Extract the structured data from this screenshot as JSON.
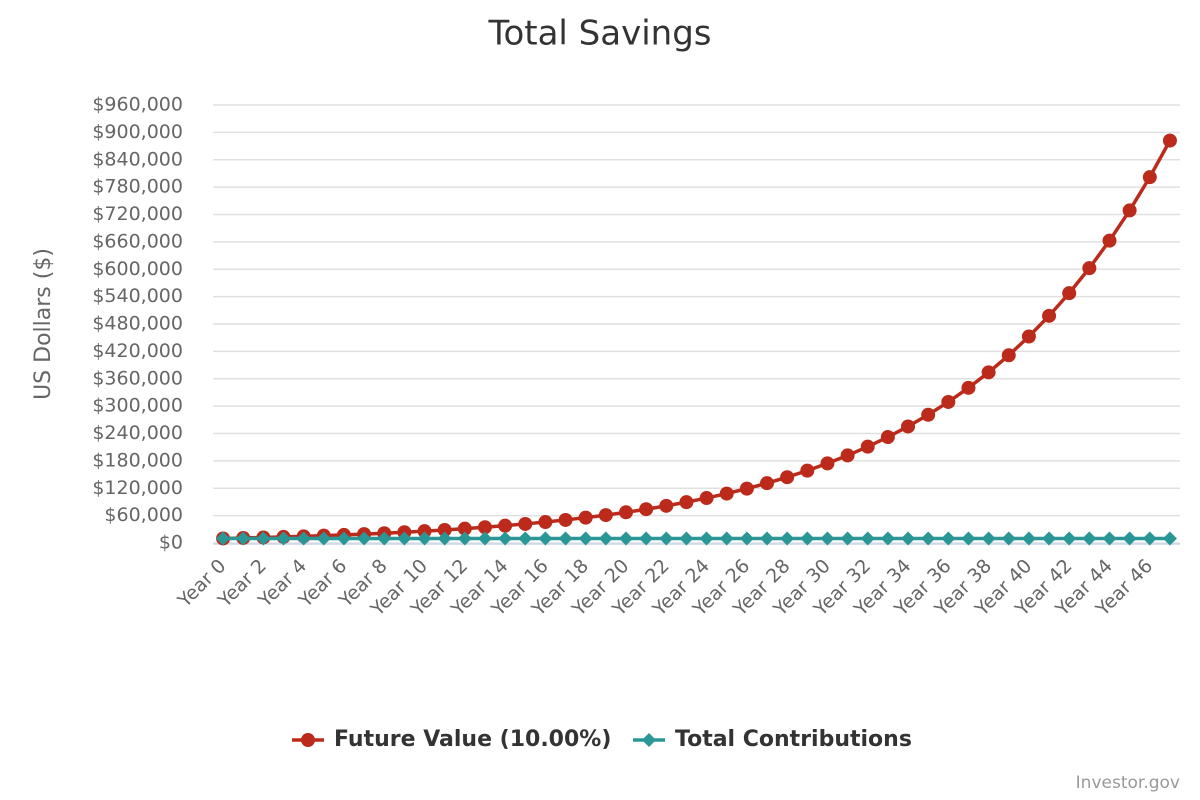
{
  "chart_data": {
    "type": "line",
    "title": "Total Savings",
    "y_label": "US Dollars ($)",
    "credit": "Investor.gov",
    "categories": [
      "Year 0",
      null,
      "Year 2",
      null,
      "Year 4",
      null,
      "Year 6",
      null,
      "Year 8",
      null,
      "Year 10",
      null,
      "Year 12",
      null,
      "Year 14",
      null,
      "Year 16",
      null,
      "Year 18",
      null,
      "Year 20",
      null,
      "Year 22",
      null,
      "Year 24",
      null,
      "Year 26",
      null,
      "Year 28",
      null,
      "Year 30",
      null,
      "Year 32",
      null,
      "Year 34",
      null,
      "Year 36",
      null,
      "Year 38",
      null,
      "Year 40",
      null,
      "Year 42",
      null,
      "Year 44",
      null,
      "Year 46",
      null
    ],
    "series": [
      {
        "name": "Future Value (10.00%)",
        "color": "#bb2a1a",
        "marker": "circle",
        "values": [
          10000,
          11000,
          12100,
          13310,
          14641,
          16105,
          17716,
          19487,
          21436,
          23579,
          25937,
          28531,
          31384,
          34523,
          37975,
          41772,
          45950,
          50545,
          55599,
          61159,
          67275,
          74002,
          81403,
          89543,
          98497,
          108347,
          119182,
          131100,
          144210,
          158631,
          174494,
          191943,
          211138,
          232252,
          255477,
          281024,
          309127,
          340039,
          374043,
          411448,
          452593,
          497852,
          547637,
          602401,
          662641,
          728905,
          801795,
          881975
        ]
      },
      {
        "name": "Total Contributions",
        "color": "#2b9696",
        "marker": "diamond",
        "values": [
          10000,
          10000,
          10000,
          10000,
          10000,
          10000,
          10000,
          10000,
          10000,
          10000,
          10000,
          10000,
          10000,
          10000,
          10000,
          10000,
          10000,
          10000,
          10000,
          10000,
          10000,
          10000,
          10000,
          10000,
          10000,
          10000,
          10000,
          10000,
          10000,
          10000,
          10000,
          10000,
          10000,
          10000,
          10000,
          10000,
          10000,
          10000,
          10000,
          10000,
          10000,
          10000,
          10000,
          10000,
          10000,
          10000,
          10000,
          10000
        ]
      }
    ],
    "ylim": [
      0,
      960000
    ],
    "yticks": [
      {
        "value": 0,
        "label": "$0"
      },
      {
        "value": 60000,
        "label": "$60,000"
      },
      {
        "value": 120000,
        "label": "$120,000"
      },
      {
        "value": 180000,
        "label": "$180,000"
      },
      {
        "value": 240000,
        "label": "$240,000"
      },
      {
        "value": 300000,
        "label": "$300,000"
      },
      {
        "value": 360000,
        "label": "$360,000"
      },
      {
        "value": 420000,
        "label": "$420,000"
      },
      {
        "value": 480000,
        "label": "$480,000"
      },
      {
        "value": 540000,
        "label": "$540,000"
      },
      {
        "value": 600000,
        "label": "$600,000"
      },
      {
        "value": 660000,
        "label": "$660,000"
      },
      {
        "value": 720000,
        "label": "$720,000"
      },
      {
        "value": 780000,
        "label": "$780,000"
      },
      {
        "value": 840000,
        "label": "$840,000"
      },
      {
        "value": 900000,
        "label": "$900,000"
      },
      {
        "value": 960000,
        "label": "$960,000"
      }
    ],
    "grid": true,
    "legend": "bottom"
  }
}
